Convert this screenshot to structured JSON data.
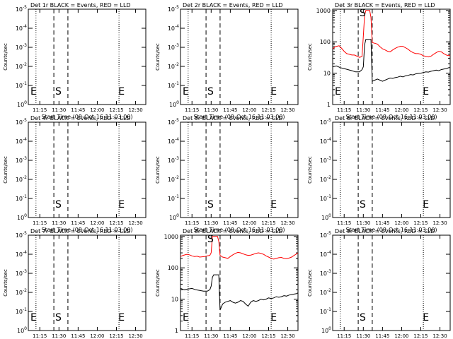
{
  "colors": {
    "events": "#000000",
    "lld": "#ff0000",
    "axes": "#000000"
  },
  "common": {
    "ylabel": "Counts/sec",
    "xlabel": "Start Time (09-Oct-16 11:03:00)",
    "xticks": [
      "11:15",
      "11:30",
      "11:45",
      "12:00",
      "12:15",
      "12:30"
    ],
    "xtick_values": [
      12,
      27,
      42,
      57,
      72,
      87
    ],
    "xlim": [
      3,
      95
    ],
    "markers": {
      "dotted": [
        9,
        74
      ],
      "dashed": [
        23,
        34
      ],
      "letters": [
        {
          "text": "S",
          "x": 26.5
        },
        {
          "text": "E",
          "x": 76
        }
      ]
    },
    "empty_yticks": [
      "10$^0$",
      "10$^{-1}$",
      "10$^{-2}$",
      "10$^{-3}$",
      "10$^{-4}$",
      "10$^{-5}$"
    ],
    "data_yticks": [
      "1",
      "10",
      "100",
      "1000"
    ]
  },
  "chart_data": [
    {
      "type": "line",
      "title": "Det 1r BLACK = Events, RED = LLD",
      "has_data": false,
      "first_marker": "E"
    },
    {
      "type": "line",
      "title": "Det 2r BLACK = Events, RED = LLD",
      "has_data": false,
      "first_marker": "E"
    },
    {
      "type": "line",
      "title": "Det 3r BLACK = Events, RED = LLD",
      "has_data": true,
      "first_marker": "E",
      "yscale": "log",
      "ylim": [
        1,
        1100
      ],
      "series": [
        {
          "color": "red",
          "x": [
            3,
            5,
            8,
            10,
            12,
            14,
            16,
            18,
            20,
            22,
            24,
            25,
            26,
            27,
            28,
            29,
            30,
            31,
            32,
            33,
            34,
            36,
            38,
            40,
            42,
            44,
            46,
            48,
            50,
            52,
            54,
            56,
            58,
            60,
            62,
            64,
            66,
            68,
            70,
            72,
            74,
            76,
            78,
            80,
            82,
            84,
            86,
            88,
            90,
            92,
            94,
            95
          ],
          "y": [
            60,
            70,
            75,
            62,
            50,
            42,
            40,
            38,
            38,
            35,
            32,
            33,
            34,
            150,
            700,
            1000,
            1000,
            1000,
            1000,
            600,
            95,
            90,
            85,
            70,
            60,
            55,
            50,
            48,
            55,
            62,
            68,
            72,
            72,
            65,
            58,
            50,
            45,
            42,
            42,
            40,
            36,
            34,
            33,
            35,
            40,
            45,
            50,
            48,
            42,
            38,
            36,
            38
          ]
        },
        {
          "color": "black",
          "x": [
            3,
            6,
            9,
            12,
            15,
            18,
            21,
            24,
            25,
            26,
            27,
            28,
            29,
            33,
            34,
            36,
            38,
            40,
            42,
            44,
            46,
            48,
            50,
            52,
            54,
            56,
            58,
            60,
            62,
            64,
            66,
            68,
            70,
            72,
            74,
            76,
            78,
            80,
            82,
            84,
            86,
            88,
            90,
            92,
            94,
            95
          ],
          "y": [
            16,
            17,
            15,
            14,
            13,
            12,
            11,
            11,
            12,
            13,
            16,
            80,
            120,
            120,
            5.5,
            6,
            6.5,
            6,
            5.5,
            6,
            6.5,
            7,
            6.8,
            7.2,
            7.5,
            8,
            7.6,
            8.2,
            8.5,
            9,
            8.8,
            9.5,
            9.8,
            10,
            10.5,
            11,
            10.8,
            11.5,
            12,
            12.5,
            12,
            13,
            13.5,
            14,
            15,
            15
          ]
        }
      ]
    },
    {
      "type": "line",
      "title": "Det 4r BLACK = Events, RED = LLD",
      "has_data": false,
      "first_marker": "S"
    },
    {
      "type": "line",
      "title": "Det 5r BLACK = Events, RED = LLD",
      "has_data": false,
      "first_marker": "S"
    },
    {
      "type": "line",
      "title": "Det 6r BLACK = Events, RED = LLD",
      "has_data": false,
      "first_marker": "S"
    },
    {
      "type": "line",
      "title": "Det 7r BLACK = Events, RED = LLD",
      "has_data": false,
      "first_marker": "E"
    },
    {
      "type": "line",
      "title": "Det 8r BLACK = Events, RED = LLD",
      "has_data": true,
      "first_marker": "E",
      "yscale": "log",
      "ylim": [
        1,
        1100
      ],
      "series": [
        {
          "color": "red",
          "x": [
            3,
            5,
            8,
            10,
            12,
            14,
            16,
            18,
            20,
            22,
            24,
            26,
            27,
            28,
            29,
            30,
            31,
            32,
            33,
            34,
            36,
            38,
            40,
            42,
            44,
            46,
            48,
            50,
            52,
            54,
            56,
            58,
            60,
            62,
            64,
            66,
            68,
            70,
            72,
            74,
            76,
            78,
            80,
            82,
            84,
            86,
            88,
            90,
            92,
            94,
            95
          ],
          "y": [
            230,
            250,
            270,
            260,
            240,
            230,
            235,
            220,
            225,
            230,
            240,
            250,
            300,
            1000,
            1000,
            1000,
            1000,
            1000,
            700,
            250,
            220,
            210,
            200,
            230,
            260,
            290,
            310,
            300,
            280,
            260,
            250,
            255,
            270,
            290,
            300,
            290,
            270,
            240,
            220,
            200,
            190,
            200,
            210,
            215,
            200,
            195,
            205,
            220,
            250,
            280,
            300
          ]
        },
        {
          "color": "black",
          "x": [
            3,
            6,
            9,
            12,
            15,
            18,
            21,
            24,
            25,
            26,
            27,
            28,
            29,
            33,
            34,
            36,
            38,
            40,
            42,
            44,
            46,
            48,
            50,
            52,
            54,
            56,
            58,
            60,
            62,
            64,
            66,
            68,
            70,
            72,
            74,
            76,
            78,
            80,
            82,
            84,
            86,
            88,
            90,
            92,
            94,
            95
          ],
          "y": [
            22,
            20,
            21,
            22,
            20,
            19,
            18,
            18,
            19,
            20,
            26,
            50,
            60,
            60,
            4.5,
            7,
            8,
            8.5,
            9,
            8,
            7.5,
            8,
            9,
            8.5,
            7,
            6,
            8,
            9,
            8.5,
            9,
            10,
            9.5,
            10,
            11,
            10.5,
            11,
            12,
            11.5,
            12,
            13,
            12.5,
            13.5,
            14,
            14.5,
            15,
            16
          ]
        }
      ]
    },
    {
      "type": "line",
      "title": "Det 9r BLACK = Events, RED = LLD",
      "has_data": false,
      "first_marker": "S"
    }
  ]
}
